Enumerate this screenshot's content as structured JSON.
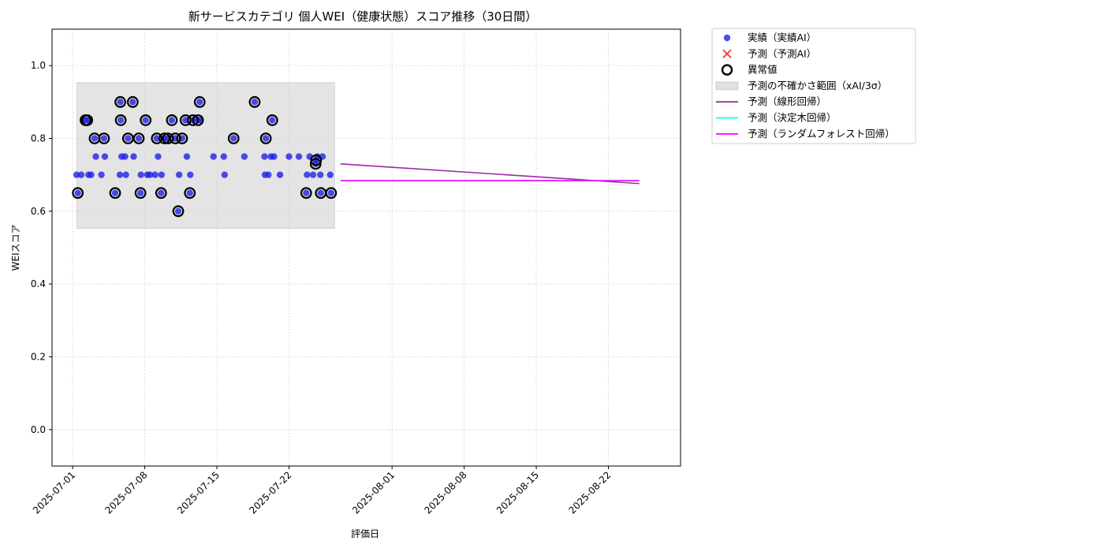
{
  "chart_data": {
    "type": "scatter",
    "title": "新サービスカテゴリ 個人WEI（健康状態）スコア推移（30日間）",
    "xlabel": "評価日",
    "ylabel": "WEIスコア",
    "x_is_date": true,
    "xlim": [
      "2025-06-29",
      "2025-08-29"
    ],
    "ylim": [
      -0.1,
      1.1
    ],
    "y_ticks": [
      0.0,
      0.2,
      0.4,
      0.6,
      0.8,
      1.0
    ],
    "y_tick_labels": [
      "0.0",
      "0.2",
      "0.4",
      "0.6",
      "0.8",
      "1.0"
    ],
    "x_ticks": [
      "2025-07-01",
      "2025-07-08",
      "2025-07-15",
      "2025-07-22",
      "2025-08-01",
      "2025-08-08",
      "2025-08-15",
      "2025-08-22"
    ],
    "x_tick_labels": [
      "2025-07-01",
      "2025-07-08",
      "2025-07-15",
      "2025-07-22",
      "2025-08-01",
      "2025-08-08",
      "2025-08-15",
      "2025-08-22"
    ],
    "grid": true,
    "legend_position": "outside-upper-right",
    "colors": {
      "actual": "#2020e8",
      "predicted_ai": "#ff3030",
      "anomaly": "#000000",
      "band": "#d3d3d3",
      "linear": "#9b2aa8",
      "tree": "#00ffff",
      "forest": "#ff00ff"
    },
    "uncertainty_band": {
      "x": [
        "2025-07-01 10:00",
        "2025-07-26 10:00"
      ],
      "y": [
        0.553,
        0.953
      ]
    },
    "actual": [
      [
        "2025-07-01 09:00",
        0.7
      ],
      [
        "2025-07-01 12:00",
        0.65
      ],
      [
        "2025-07-01 20:00",
        0.7
      ],
      [
        "2025-07-02 06:00",
        0.85
      ],
      [
        "2025-07-02 10:00",
        0.85
      ],
      [
        "2025-07-02 13:00",
        0.7
      ],
      [
        "2025-07-02 19:00",
        0.7
      ],
      [
        "2025-07-03 03:00",
        0.8
      ],
      [
        "2025-07-03 06:00",
        0.75
      ],
      [
        "2025-07-03 19:00",
        0.7
      ],
      [
        "2025-07-04 01:00",
        0.8
      ],
      [
        "2025-07-04 03:00",
        0.75
      ],
      [
        "2025-07-05 03:00",
        0.65
      ],
      [
        "2025-07-05 14:00",
        0.7
      ],
      [
        "2025-07-05 15:00",
        0.9
      ],
      [
        "2025-07-05 16:00",
        0.85
      ],
      [
        "2025-07-05 18:00",
        0.75
      ],
      [
        "2025-07-06 02:00",
        0.75
      ],
      [
        "2025-07-06 04:00",
        0.7
      ],
      [
        "2025-07-06 09:00",
        0.8
      ],
      [
        "2025-07-06 20:00",
        0.9
      ],
      [
        "2025-07-06 22:00",
        0.75
      ],
      [
        "2025-07-07 10:00",
        0.8
      ],
      [
        "2025-07-07 14:00",
        0.65
      ],
      [
        "2025-07-07 15:00",
        0.7
      ],
      [
        "2025-07-08 02:00",
        0.85
      ],
      [
        "2025-07-08 06:00",
        0.7
      ],
      [
        "2025-07-08 12:00",
        0.7
      ],
      [
        "2025-07-09 00:00",
        0.7
      ],
      [
        "2025-07-09 04:00",
        0.8
      ],
      [
        "2025-07-09 07:00",
        0.75
      ],
      [
        "2025-07-09 14:00",
        0.65
      ],
      [
        "2025-07-09 15:00",
        0.7
      ],
      [
        "2025-07-09 22:00",
        0.8
      ],
      [
        "2025-07-10 06:00",
        0.8
      ],
      [
        "2025-07-10 15:00",
        0.85
      ],
      [
        "2025-07-10 23:00",
        0.8
      ],
      [
        "2025-07-11 06:00",
        0.6
      ],
      [
        "2025-07-11 08:00",
        0.7
      ],
      [
        "2025-07-11 15:00",
        0.8
      ],
      [
        "2025-07-11 23:00",
        0.85
      ],
      [
        "2025-07-12 02:00",
        0.75
      ],
      [
        "2025-07-12 09:00",
        0.65
      ],
      [
        "2025-07-12 10:00",
        0.7
      ],
      [
        "2025-07-12 16:00",
        0.85
      ],
      [
        "2025-07-13 04:00",
        0.85
      ],
      [
        "2025-07-13 08:00",
        0.9
      ],
      [
        "2025-07-13 10:00",
        0.85
      ],
      [
        "2025-07-14 16:00",
        0.75
      ],
      [
        "2025-07-15 16:00",
        0.75
      ],
      [
        "2025-07-15 18:00",
        0.7
      ],
      [
        "2025-07-16 15:00",
        0.8
      ],
      [
        "2025-07-17 16:00",
        0.75
      ],
      [
        "2025-07-18 16:00",
        0.9
      ],
      [
        "2025-07-19 15:00",
        0.75
      ],
      [
        "2025-07-19 16:00",
        0.7
      ],
      [
        "2025-07-19 18:00",
        0.8
      ],
      [
        "2025-07-20 00:00",
        0.7
      ],
      [
        "2025-07-20 06:00",
        0.75
      ],
      [
        "2025-07-20 09:00",
        0.85
      ],
      [
        "2025-07-20 13:00",
        0.75
      ],
      [
        "2025-07-21 03:00",
        0.7
      ],
      [
        "2025-07-22 00:00",
        0.75
      ],
      [
        "2025-07-22 23:00",
        0.75
      ],
      [
        "2025-07-23 16:00",
        0.65
      ],
      [
        "2025-07-23 18:00",
        0.7
      ],
      [
        "2025-07-24 00:00",
        0.75
      ],
      [
        "2025-07-24 08:00",
        0.7
      ],
      [
        "2025-07-24 14:00",
        0.73
      ],
      [
        "2025-07-24 15:00",
        0.74
      ],
      [
        "2025-07-24 18:00",
        0.75
      ],
      [
        "2025-07-25 01:00",
        0.7
      ],
      [
        "2025-07-25 02:00",
        0.65
      ],
      [
        "2025-07-25 06:00",
        0.75
      ],
      [
        "2025-07-26 00:00",
        0.7
      ],
      [
        "2025-07-26 02:00",
        0.65
      ]
    ],
    "anomalies": [
      [
        "2025-07-01 12:00",
        0.65
      ],
      [
        "2025-07-02 06:00",
        0.85
      ],
      [
        "2025-07-02 10:00",
        0.85
      ],
      [
        "2025-07-03 03:00",
        0.8
      ],
      [
        "2025-07-04 01:00",
        0.8
      ],
      [
        "2025-07-05 03:00",
        0.65
      ],
      [
        "2025-07-05 15:00",
        0.9
      ],
      [
        "2025-07-05 16:00",
        0.85
      ],
      [
        "2025-07-06 09:00",
        0.8
      ],
      [
        "2025-07-06 20:00",
        0.9
      ],
      [
        "2025-07-07 10:00",
        0.8
      ],
      [
        "2025-07-07 14:00",
        0.65
      ],
      [
        "2025-07-08 02:00",
        0.85
      ],
      [
        "2025-07-09 04:00",
        0.8
      ],
      [
        "2025-07-09 14:00",
        0.65
      ],
      [
        "2025-07-09 22:00",
        0.8
      ],
      [
        "2025-07-10 06:00",
        0.8
      ],
      [
        "2025-07-10 15:00",
        0.85
      ],
      [
        "2025-07-10 23:00",
        0.8
      ],
      [
        "2025-07-11 06:00",
        0.6
      ],
      [
        "2025-07-11 15:00",
        0.8
      ],
      [
        "2025-07-11 23:00",
        0.85
      ],
      [
        "2025-07-12 09:00",
        0.65
      ],
      [
        "2025-07-12 16:00",
        0.85
      ],
      [
        "2025-07-13 04:00",
        0.85
      ],
      [
        "2025-07-13 08:00",
        0.9
      ],
      [
        "2025-07-16 15:00",
        0.8
      ],
      [
        "2025-07-18 16:00",
        0.9
      ],
      [
        "2025-07-19 18:00",
        0.8
      ],
      [
        "2025-07-20 09:00",
        0.85
      ],
      [
        "2025-07-23 16:00",
        0.65
      ],
      [
        "2025-07-24 14:00",
        0.73
      ],
      [
        "2025-07-24 15:00",
        0.74
      ],
      [
        "2025-07-25 02:00",
        0.65
      ],
      [
        "2025-07-26 02:00",
        0.65
      ]
    ],
    "series": [
      {
        "name": "予測（線形回帰）",
        "key": "linear",
        "x": [
          "2025-07-27 00:00",
          "2025-08-25 00:00"
        ],
        "y": [
          0.73,
          0.676
        ]
      },
      {
        "name": "予測（決定木回帰）",
        "key": "tree",
        "x": [
          "2025-07-27 00:00",
          "2025-08-25 00:00"
        ],
        "y": [
          0.684,
          0.684
        ]
      },
      {
        "name": "予測（ランダムフォレスト回帰）",
        "key": "forest",
        "x": [
          "2025-07-27 00:00",
          "2025-08-25 00:00"
        ],
        "y": [
          0.684,
          0.684
        ]
      }
    ],
    "legend": [
      {
        "key": "actual",
        "label": "実績（実績AI）"
      },
      {
        "key": "predicted_ai",
        "label": "予測（予測AI）"
      },
      {
        "key": "anomaly",
        "label": "異常値"
      },
      {
        "key": "band",
        "label": "予測の不確かさ範囲（xAI/3σ）"
      },
      {
        "key": "linear",
        "label": "予測（線形回帰）"
      },
      {
        "key": "tree",
        "label": "予測（決定木回帰）"
      },
      {
        "key": "forest",
        "label": "予測（ランダムフォレスト回帰）"
      }
    ]
  }
}
